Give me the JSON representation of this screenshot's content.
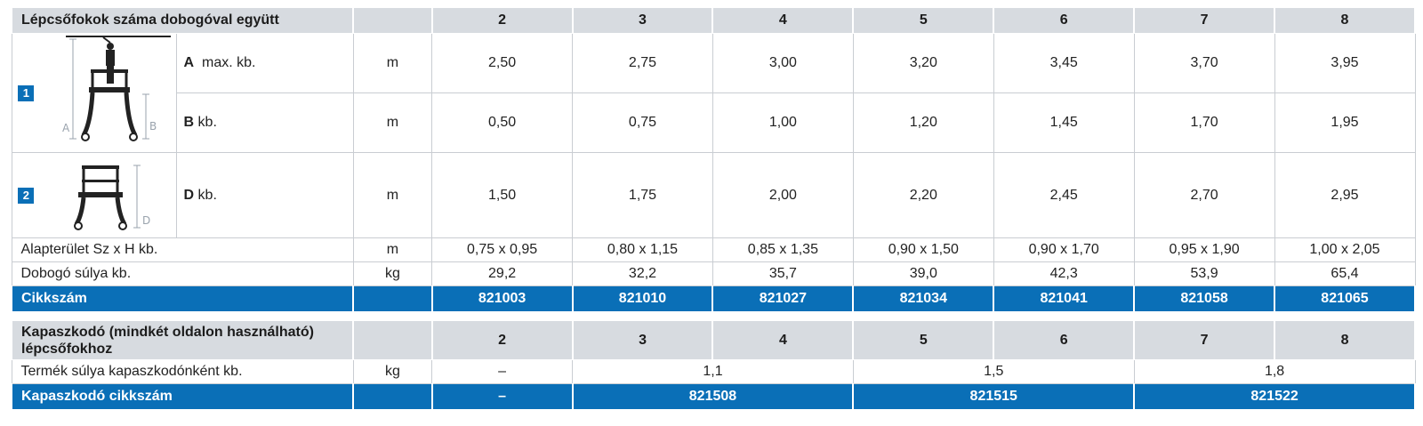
{
  "table1": {
    "header_label": "Lépcsőfokok száma dobogóval együtt",
    "columns": [
      "2",
      "3",
      "4",
      "5",
      "6",
      "7",
      "8"
    ],
    "variant1": {
      "badge": "1",
      "rows": [
        {
          "letter": "A",
          "label": "max. kb.",
          "unit": "m",
          "values": [
            "2,50",
            "2,75",
            "3,00",
            "3,20",
            "3,45",
            "3,70",
            "3,95"
          ]
        },
        {
          "letter": "B",
          "label": "kb.",
          "unit": "m",
          "values": [
            "0,50",
            "0,75",
            "1,00",
            "1,20",
            "1,45",
            "1,70",
            "1,95"
          ]
        }
      ],
      "dim_labels": {
        "a": "A",
        "b": "B"
      }
    },
    "variant2": {
      "badge": "2",
      "row": {
        "letter": "D",
        "label": "kb.",
        "unit": "m",
        "values": [
          "1,50",
          "1,75",
          "2,00",
          "2,20",
          "2,45",
          "2,70",
          "2,95"
        ]
      },
      "dim_labels": {
        "d": "D"
      }
    },
    "footprint": {
      "label": "Alapterület Sz x H kb.",
      "unit": "m",
      "values": [
        "0,75 x 0,95",
        "0,80 x 1,15",
        "0,85 x 1,35",
        "0,90 x 1,50",
        "0,90 x 1,70",
        "0,95 x 1,90",
        "1,00 x 2,05"
      ]
    },
    "weight": {
      "label": "Dobogó súlya kb.",
      "unit": "kg",
      "values": [
        "29,2",
        "32,2",
        "35,7",
        "39,0",
        "42,3",
        "53,9",
        "65,4"
      ]
    },
    "article": {
      "label": "Cikkszám",
      "values": [
        "821003",
        "821010",
        "821027",
        "821034",
        "821041",
        "821058",
        "821065"
      ]
    }
  },
  "table2": {
    "header_label_line1": "Kapaszkodó (mindkét oldalon használható)",
    "header_label_line2": "lépcsőfokhoz",
    "columns": [
      "2",
      "3",
      "4",
      "5",
      "6",
      "7",
      "8"
    ],
    "weight": {
      "label": "Termék súlya kapaszkodónként kb.",
      "unit": "kg",
      "values": [
        "–",
        "1,1",
        "1,5",
        "1,8"
      ]
    },
    "article": {
      "label": "Kapaszkodó cikkszám",
      "values": [
        "–",
        "821508",
        "821515",
        "821522"
      ]
    }
  },
  "colors": {
    "header_bg": "#d7dbe0",
    "accent_blue": "#0a6fb7",
    "grid": "#c9cdd2"
  }
}
